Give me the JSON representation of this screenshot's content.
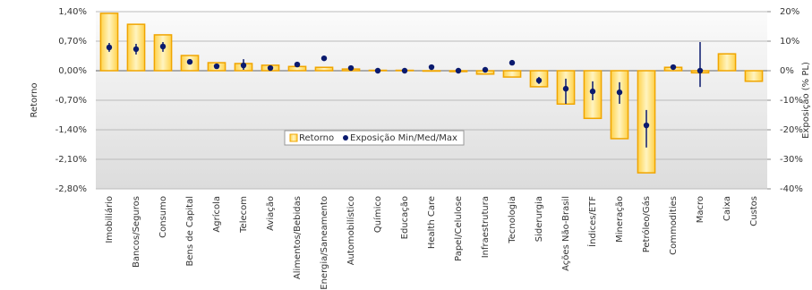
{
  "chart_data": {
    "type": "bar",
    "y_label": "Retorno",
    "y2_label": "Exposição (% PL)",
    "categories": [
      "Imobiliário",
      "Bancos/Seguros",
      "Consumo",
      "Bens de Capital",
      "Agrícola",
      "Telecom",
      "Aviação",
      "Alimentos/Bebidas",
      "Energia/Saneamento",
      "Automobilístico",
      "Químico",
      "Educação",
      "Health Care",
      "Papel/Celulose",
      "Infraestrutura",
      "Tecnologia",
      "Siderurgia",
      "Ações Não-Brasil",
      "Índices/ETF",
      "Mineração",
      "Petróleo/Gás",
      "Commodities",
      "Macro",
      "Caixa",
      "Custos"
    ],
    "series": [
      {
        "name": "Retorno",
        "color": "#f0a500",
        "values": [
          1.36,
          1.1,
          0.85,
          0.36,
          0.19,
          0.17,
          0.13,
          0.1,
          0.08,
          0.04,
          0.01,
          0.01,
          -0.01,
          -0.02,
          -0.08,
          -0.15,
          -0.38,
          -0.79,
          -1.13,
          -1.61,
          -2.42,
          0.08,
          -0.05,
          0.4,
          -0.25
        ]
      },
      {
        "name": "Exposição Min/Med/Max",
        "color": "#0a1a6e",
        "axis": "y2",
        "values": [
          7.9,
          7.3,
          8.2,
          3.0,
          1.5,
          1.8,
          0.9,
          2.1,
          4.2,
          0.9,
          0,
          0,
          1.2,
          0,
          0.3,
          2.7,
          -3.3,
          -6.1,
          -7.0,
          -7.3,
          -18.5,
          1.2,
          0,
          null,
          null
        ],
        "min": [
          6.4,
          5.5,
          6.4,
          null,
          null,
          0.3,
          null,
          null,
          null,
          null,
          null,
          null,
          null,
          null,
          null,
          null,
          -4.5,
          -11.2,
          -10,
          -11.2,
          -26,
          null,
          -5.5,
          null,
          null
        ],
        "max": [
          9.4,
          9.1,
          9.7,
          null,
          null,
          3.9,
          null,
          null,
          null,
          null,
          null,
          null,
          null,
          null,
          null,
          null,
          -2.1,
          -2.7,
          -3.6,
          -3.9,
          -13.3,
          null,
          9.7,
          null,
          null
        ]
      }
    ],
    "ylim": [
      -2.8,
      1.4
    ],
    "yticks": [
      {
        "value": 1.4,
        "label": "1,40%"
      },
      {
        "value": 0.7,
        "label": "0,70%"
      },
      {
        "value": 0,
        "label": "0,00%"
      },
      {
        "value": -0.7,
        "label": "-0,70%"
      },
      {
        "value": -1.4,
        "label": "-1,40%"
      },
      {
        "value": -2.1,
        "label": "-2,10%"
      },
      {
        "value": -2.8,
        "label": "-2,80%"
      }
    ],
    "y2lim": [
      -40,
      20
    ],
    "y2ticks": [
      {
        "value": 20,
        "label": "20%"
      },
      {
        "value": 10,
        "label": "10%"
      },
      {
        "value": 0,
        "label": "0%"
      },
      {
        "value": -10,
        "label": "-10%"
      },
      {
        "value": -20,
        "label": "-20%"
      },
      {
        "value": -30,
        "label": "-30%"
      },
      {
        "value": -40,
        "label": "-40%"
      }
    ],
    "grid": true
  }
}
